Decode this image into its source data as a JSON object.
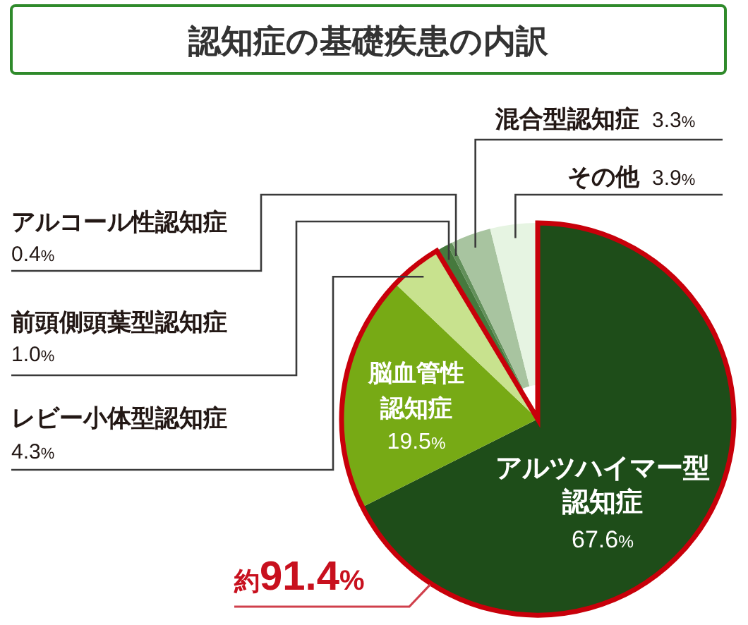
{
  "chart_data": {
    "type": "pie",
    "title": "認知症の基礎疾患の内訳",
    "categories": [
      "アルツハイマー型認知症",
      "脳血管性認知症",
      "レビー小体型認知症",
      "前頭側頭葉型認知症",
      "アルコール性認知症",
      "混合型認知症",
      "その他"
    ],
    "values": [
      67.6,
      19.5,
      4.3,
      1.0,
      0.4,
      3.3,
      3.9
    ],
    "value_labels": [
      "67.6%",
      "19.5%",
      "4.3%",
      "1.0%",
      "0.4%",
      "3.3%",
      "3.9%"
    ],
    "colors": [
      "#1e4d19",
      "#77aa15",
      "#c8e28e",
      "#46793d",
      "#62905a",
      "#a8c4a0",
      "#e6f4e2"
    ],
    "annotations": [
      "約91.4%"
    ]
  }
}
